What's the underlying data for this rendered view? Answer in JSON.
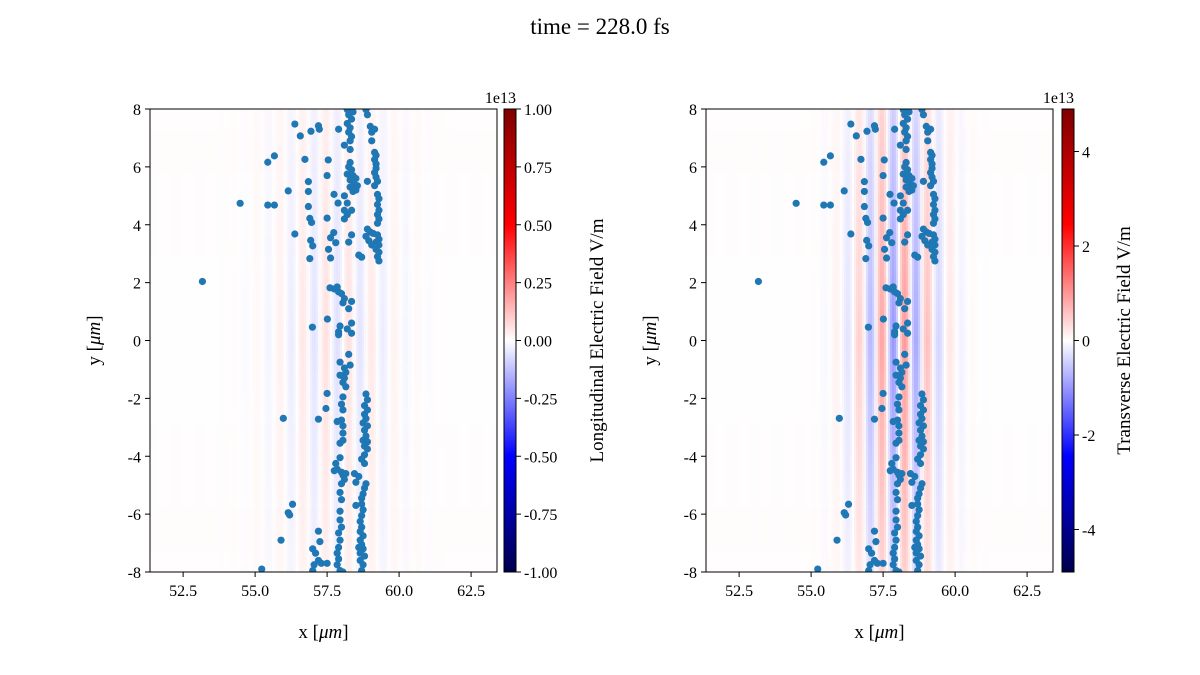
{
  "title": "time = 228.0 fs",
  "chart_data": [
    {
      "type": "heatmap",
      "name": "longitudinal",
      "xlabel_prefix": "x [",
      "xlabel_unit": "μm",
      "xlabel_suffix": "]",
      "ylabel_prefix": "y [",
      "ylabel_unit": "μm",
      "ylabel_suffix": "]",
      "xlim": [
        51.35,
        63.4
      ],
      "ylim": [
        -8,
        8
      ],
      "xticks": [
        52.5,
        55.0,
        57.5,
        60.0,
        62.5
      ],
      "xtick_labels": [
        "52.5",
        "55.0",
        "57.5",
        "60.0",
        "62.5"
      ],
      "yticks": [
        -8,
        -6,
        -4,
        -2,
        0,
        2,
        4,
        6,
        8
      ],
      "ytick_labels": [
        "-8",
        "-6",
        "-4",
        "-2",
        "0",
        "2",
        "4",
        "6",
        "8"
      ],
      "colorbar": {
        "label": "Longitudinal Electric Field V/m",
        "offset_text": "1e13",
        "range": [
          -1.0,
          1.0
        ],
        "ticks": [
          1.0,
          0.75,
          0.5,
          0.25,
          0.0,
          -0.25,
          -0.5,
          -0.75,
          -1.0
        ],
        "tick_labels": [
          "1.00",
          "0.75",
          "0.50",
          "0.25",
          "0.00",
          "-0.25",
          "-0.50",
          "-0.75",
          "-1.00"
        ],
        "colormap": "seismic"
      },
      "field": {
        "peak": 0.06,
        "wavelength_um": 0.8,
        "center_um": 57.8,
        "width_um": 2.2
      }
    },
    {
      "type": "heatmap",
      "name": "transverse",
      "xlabel_prefix": "x [",
      "xlabel_unit": "μm",
      "xlabel_suffix": "]",
      "ylabel_prefix": "y [",
      "ylabel_unit": "μm",
      "ylabel_suffix": "]",
      "xlim": [
        51.35,
        63.4
      ],
      "ylim": [
        -8,
        8
      ],
      "xticks": [
        52.5,
        55.0,
        57.5,
        60.0,
        62.5
      ],
      "xtick_labels": [
        "52.5",
        "55.0",
        "57.5",
        "60.0",
        "62.5"
      ],
      "yticks": [
        -8,
        -6,
        -4,
        -2,
        0,
        2,
        4,
        6,
        8
      ],
      "ytick_labels": [
        "-8",
        "-6",
        "-4",
        "-2",
        "0",
        "2",
        "4",
        "6",
        "8"
      ],
      "colorbar": {
        "label": "Transverse Electric Field V/m",
        "offset_text": "1e13",
        "range": [
          -4.9,
          4.9
        ],
        "ticks": [
          4,
          2,
          0,
          -2,
          -4
        ],
        "tick_labels": [
          "4",
          "2",
          "0",
          "-2",
          "-4"
        ],
        "colormap": "seismic"
      },
      "field": {
        "peak": 1.0,
        "wavelength_um": 0.8,
        "center_um": 58.0,
        "width_um": 1.5
      }
    }
  ],
  "scatter": {
    "color": "#1f77b4",
    "points": [
      [
        53.17,
        2.04
      ],
      [
        54.48,
        4.74
      ],
      [
        55.44,
        6.16
      ],
      [
        55.67,
        6.38
      ],
      [
        55.44,
        4.68
      ],
      [
        55.67,
        4.68
      ],
      [
        56.15,
        5.17
      ],
      [
        56.38,
        7.48
      ],
      [
        56.57,
        7.07
      ],
      [
        56.73,
        6.26
      ],
      [
        56.94,
        7.23
      ],
      [
        56.85,
        5.49
      ],
      [
        56.85,
        5.15
      ],
      [
        56.85,
        4.63
      ],
      [
        56.9,
        4.22
      ],
      [
        56.96,
        4.08
      ],
      [
        56.38,
        3.68
      ],
      [
        56.93,
        3.46
      ],
      [
        57.0,
        3.27
      ],
      [
        56.9,
        2.83
      ],
      [
        56.99,
        0.46
      ],
      [
        57.51,
        0.74
      ],
      [
        57.2,
        7.42
      ],
      [
        57.23,
        7.3
      ],
      [
        57.54,
        6.24
      ],
      [
        57.5,
        5.7
      ],
      [
        57.74,
        5.05
      ],
      [
        57.88,
        4.75
      ],
      [
        57.5,
        4.23
      ],
      [
        57.73,
        3.73
      ],
      [
        57.62,
        3.55
      ],
      [
        57.8,
        3.38
      ],
      [
        57.55,
        3.15
      ],
      [
        57.62,
        2.85
      ],
      [
        57.9,
        7.3
      ],
      [
        58.2,
        7.98
      ],
      [
        58.3,
        7.95
      ],
      [
        58.4,
        7.9
      ],
      [
        58.25,
        7.8
      ],
      [
        58.35,
        7.65
      ],
      [
        58.2,
        7.5
      ],
      [
        58.3,
        7.35
      ],
      [
        58.25,
        7.2
      ],
      [
        58.35,
        7.05
      ],
      [
        58.3,
        6.9
      ],
      [
        58.1,
        6.75
      ],
      [
        58.3,
        6.15
      ],
      [
        58.25,
        6.0
      ],
      [
        58.35,
        5.9
      ],
      [
        58.2,
        5.75
      ],
      [
        58.4,
        5.7
      ],
      [
        58.3,
        5.55
      ],
      [
        58.45,
        5.4
      ],
      [
        58.3,
        5.3
      ],
      [
        58.5,
        5.2
      ],
      [
        58.1,
        5.0
      ],
      [
        58.4,
        5.15
      ],
      [
        58.55,
        5.35
      ],
      [
        58.2,
        4.75
      ],
      [
        58.1,
        4.5
      ],
      [
        58.35,
        4.5
      ],
      [
        58.2,
        4.35
      ],
      [
        58.1,
        4.2
      ],
      [
        58.35,
        3.65
      ],
      [
        58.25,
        3.4
      ],
      [
        58.6,
        2.95
      ],
      [
        58.7,
        2.88
      ],
      [
        58.5,
        5.6
      ],
      [
        58.3,
        6.6
      ],
      [
        58.9,
        5.5
      ],
      [
        58.85,
        7.98
      ],
      [
        58.9,
        7.8
      ],
      [
        59.0,
        7.4
      ],
      [
        59.05,
        7.2
      ],
      [
        59.15,
        7.3
      ],
      [
        59.05,
        6.9
      ],
      [
        59.15,
        6.5
      ],
      [
        59.2,
        6.4
      ],
      [
        59.15,
        6.25
      ],
      [
        59.2,
        6.1
      ],
      [
        59.2,
        5.95
      ],
      [
        59.15,
        5.8
      ],
      [
        59.2,
        5.65
      ],
      [
        59.25,
        5.5
      ],
      [
        59.15,
        5.35
      ],
      [
        59.25,
        5.05
      ],
      [
        59.3,
        4.9
      ],
      [
        59.25,
        4.7
      ],
      [
        59.3,
        4.5
      ],
      [
        59.25,
        4.35
      ],
      [
        59.3,
        4.2
      ],
      [
        59.25,
        4.05
      ],
      [
        58.9,
        3.85
      ],
      [
        59.0,
        3.75
      ],
      [
        59.1,
        3.7
      ],
      [
        59.25,
        3.65
      ],
      [
        59.3,
        3.5
      ],
      [
        59.2,
        3.4
      ],
      [
        59.3,
        3.3
      ],
      [
        59.2,
        3.15
      ],
      [
        59.3,
        3.05
      ],
      [
        59.25,
        2.9
      ],
      [
        59.3,
        2.75
      ],
      [
        58.95,
        3.45
      ],
      [
        59.05,
        3.3
      ],
      [
        58.85,
        3.6
      ],
      [
        57.6,
        1.82
      ],
      [
        57.75,
        1.78
      ],
      [
        57.85,
        1.85
      ],
      [
        57.9,
        1.68
      ],
      [
        58.0,
        1.62
      ],
      [
        58.1,
        1.45
      ],
      [
        58.05,
        1.3
      ],
      [
        58.35,
        1.35
      ],
      [
        58.25,
        1.1
      ],
      [
        57.95,
        0.5
      ],
      [
        57.9,
        0.3
      ],
      [
        57.9,
        0.2
      ],
      [
        58.2,
        0.4
      ],
      [
        58.35,
        0.6
      ],
      [
        58.35,
        0.25
      ],
      [
        58.25,
        -0.48
      ],
      [
        57.95,
        -0.75
      ],
      [
        58.1,
        -0.95
      ],
      [
        58.3,
        -0.85
      ],
      [
        58.15,
        -1.1
      ],
      [
        57.95,
        -1.2
      ],
      [
        58.1,
        -1.3
      ],
      [
        58.05,
        -1.45
      ],
      [
        58.15,
        -1.6
      ],
      [
        57.5,
        -1.83
      ],
      [
        57.46,
        -2.35
      ],
      [
        57.2,
        -2.72
      ],
      [
        55.98,
        -2.69
      ],
      [
        57.85,
        -2.8
      ],
      [
        58.0,
        -2.75
      ],
      [
        58.05,
        -2.95
      ],
      [
        58.05,
        -1.95
      ],
      [
        58.0,
        -2.2
      ],
      [
        58.05,
        -2.4
      ],
      [
        58.05,
        -3.2
      ],
      [
        57.95,
        -3.55
      ],
      [
        58.05,
        -3.45
      ],
      [
        57.95,
        -4.05
      ],
      [
        58.0,
        -4.55
      ],
      [
        57.85,
        -4.45
      ],
      [
        58.05,
        -4.65
      ],
      [
        58.15,
        -4.6
      ],
      [
        58.1,
        -4.8
      ],
      [
        58.0,
        -4.95
      ],
      [
        57.95,
        -5.25
      ],
      [
        58.0,
        -5.5
      ],
      [
        57.95,
        -5.9
      ],
      [
        57.95,
        -6.2
      ],
      [
        58.0,
        -6.45
      ],
      [
        57.9,
        -6.65
      ],
      [
        57.95,
        -6.9
      ],
      [
        57.9,
        -7.15
      ],
      [
        57.85,
        -7.35
      ],
      [
        57.9,
        -7.55
      ],
      [
        57.85,
        -7.75
      ],
      [
        57.95,
        -7.95
      ],
      [
        58.05,
        -8.0
      ],
      [
        57.5,
        -7.7
      ],
      [
        58.85,
        -1.85
      ],
      [
        58.9,
        -2.05
      ],
      [
        58.8,
        -2.25
      ],
      [
        58.9,
        -2.4
      ],
      [
        58.8,
        -2.55
      ],
      [
        58.85,
        -2.7
      ],
      [
        58.75,
        -2.85
      ],
      [
        58.9,
        -2.95
      ],
      [
        58.8,
        -3.1
      ],
      [
        58.85,
        -3.3
      ],
      [
        58.75,
        -3.45
      ],
      [
        58.9,
        -3.5
      ],
      [
        58.8,
        -3.65
      ],
      [
        58.9,
        -3.75
      ],
      [
        58.8,
        -3.95
      ],
      [
        58.7,
        -4.1
      ],
      [
        58.8,
        -4.25
      ],
      [
        58.45,
        -4.6
      ],
      [
        58.6,
        -4.7
      ],
      [
        58.5,
        -4.9
      ],
      [
        58.85,
        -4.95
      ],
      [
        58.8,
        -5.1
      ],
      [
        58.75,
        -5.3
      ],
      [
        58.7,
        -5.45
      ],
      [
        58.5,
        -5.7
      ],
      [
        58.7,
        -5.65
      ],
      [
        58.75,
        -5.85
      ],
      [
        58.7,
        -6.05
      ],
      [
        58.65,
        -6.25
      ],
      [
        58.7,
        -6.45
      ],
      [
        58.65,
        -6.6
      ],
      [
        58.75,
        -6.75
      ],
      [
        58.65,
        -6.9
      ],
      [
        58.7,
        -7.05
      ],
      [
        58.6,
        -7.15
      ],
      [
        58.75,
        -7.2
      ],
      [
        58.65,
        -7.35
      ],
      [
        58.8,
        -7.45
      ],
      [
        58.65,
        -7.6
      ],
      [
        58.75,
        -7.75
      ],
      [
        58.7,
        -7.95
      ],
      [
        56.3,
        -5.66
      ],
      [
        56.15,
        -5.95
      ],
      [
        56.2,
        -6.03
      ],
      [
        55.9,
        -6.9
      ],
      [
        57.2,
        -6.59
      ],
      [
        57.25,
        -6.95
      ],
      [
        57.0,
        -7.2
      ],
      [
        57.1,
        -7.35
      ],
      [
        57.2,
        -7.6
      ],
      [
        57.05,
        -7.75
      ],
      [
        57.3,
        -7.7
      ],
      [
        57.0,
        -7.95
      ],
      [
        55.23,
        -7.9
      ],
      [
        57.8,
        -4.25
      ],
      [
        57.75,
        -4.5
      ]
    ]
  }
}
